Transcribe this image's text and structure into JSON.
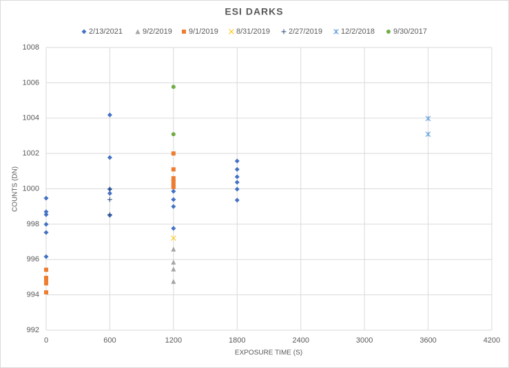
{
  "chart_data": {
    "type": "scatter",
    "title": "ESI DARKS",
    "x_label": "EXPOSURE TIME (S)",
    "y_label": "COUNTS (DN)",
    "xlim": [
      0,
      4200
    ],
    "xticks": [
      0,
      600,
      1200,
      1800,
      2400,
      3000,
      3600,
      4200
    ],
    "ylim": [
      992,
      1008
    ],
    "yticks": [
      992,
      994,
      996,
      998,
      1000,
      1002,
      1004,
      1006,
      1008
    ],
    "grid": true,
    "legend": "top",
    "series": [
      {
        "name": "2/13/2021",
        "color": "#4472c4",
        "marker": "diamond",
        "x": [
          0,
          0,
          0,
          0,
          0,
          0,
          600,
          600,
          600,
          600,
          600,
          1200,
          1200,
          1200,
          1200,
          1200,
          1200,
          1800,
          1800,
          1800,
          1800,
          1800,
          1800
        ],
        "values": [
          999.47,
          998.7,
          998.54,
          997.99,
          997.53,
          996.16,
          1004.18,
          1001.77,
          999.98,
          999.74,
          998.5,
          1000.48,
          1000.17,
          999.86,
          999.39,
          999.0,
          997.76,
          1001.57,
          1001.1,
          1000.68,
          1000.37,
          999.98,
          999.36
        ]
      },
      {
        "name": "9/2/2019",
        "color": "#a5a5a5",
        "marker": "triangle",
        "x": [
          1200,
          1200,
          1200,
          1200
        ],
        "values": [
          996.59,
          995.85,
          995.46,
          994.76
        ]
      },
      {
        "name": "9/1/2019",
        "color": "#ed7d31",
        "marker": "square",
        "x": [
          0,
          0,
          0,
          0,
          0,
          1200,
          1200,
          1200,
          1200,
          1200,
          1200
        ],
        "values": [
          995.42,
          994.96,
          994.8,
          994.65,
          994.14,
          1002.0,
          1001.1,
          1000.6,
          1000.4,
          1000.25,
          1000.1
        ]
      },
      {
        "name": "8/31/2019",
        "color": "#ffc000",
        "marker": "x",
        "x": [
          1200
        ],
        "values": [
          997.21
        ]
      },
      {
        "name": "2/27/2019",
        "color": "#264478",
        "marker": "plus",
        "x": [
          600,
          600,
          600
        ],
        "values": [
          999.98,
          999.39,
          998.54
        ]
      },
      {
        "name": "12/2/2018",
        "color": "#5b9bd5",
        "marker": "star",
        "x": [
          3600,
          3600
        ],
        "values": [
          1003.98,
          1003.09
        ]
      },
      {
        "name": "9/30/2017",
        "color": "#70ad47",
        "marker": "circle",
        "x": [
          1200,
          1200
        ],
        "values": [
          1005.77,
          1003.09
        ]
      }
    ]
  }
}
